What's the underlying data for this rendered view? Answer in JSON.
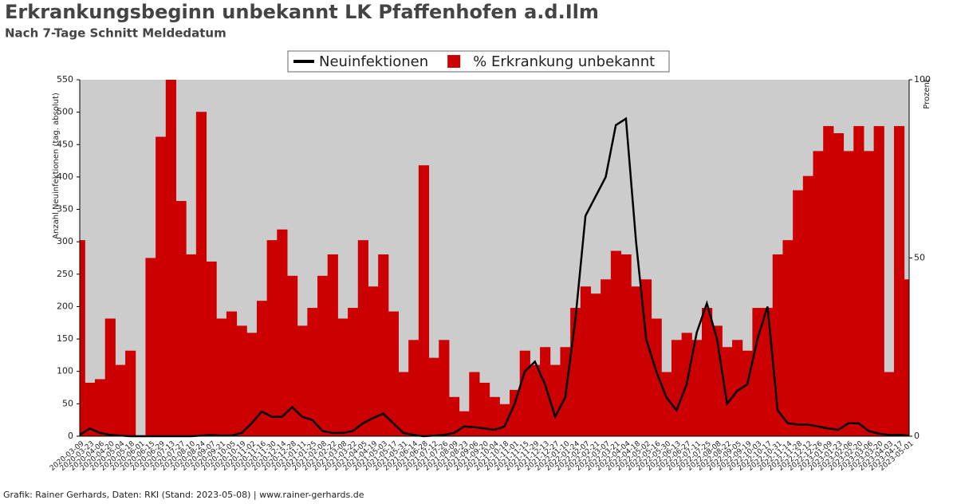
{
  "chart_data": {
    "type": "line-area",
    "title": "Erkrankungsbeginn unbekannt LK Pfaffenhofen a.d.Ilm",
    "subtitle": "Nach 7-Tage Schnitt Meldedatum",
    "ylabel": "Anzahl Neuinfektionen (tag. absolut)",
    "y2label": "Prozent",
    "footer": "Grafik: Rainer Gerhards, Daten: RKI (Stand: 2023-05-08) | www.rainer-gerhards.de",
    "categories": [
      "2020-03-09",
      "2020-03-23",
      "2020-04-06",
      "2020-04-20",
      "2020-05-04",
      "2020-05-18",
      "2020-06-01",
      "2020-06-15",
      "2020-06-29",
      "2020-07-13",
      "2020-07-27",
      "2020-08-10",
      "2020-08-24",
      "2020-09-07",
      "2020-09-21",
      "2020-10-05",
      "2020-10-19",
      "2020-11-02",
      "2020-11-16",
      "2020-11-30",
      "2020-12-14",
      "2020-12-28",
      "2021-01-11",
      "2021-01-25",
      "2021-02-08",
      "2021-02-22",
      "2021-03-08",
      "2021-03-22",
      "2021-04-05",
      "2021-04-19",
      "2021-05-03",
      "2021-05-17",
      "2021-05-31",
      "2021-06-14",
      "2021-06-28",
      "2021-07-12",
      "2021-07-26",
      "2021-08-09",
      "2021-08-23",
      "2021-09-06",
      "2021-09-20",
      "2021-10-04",
      "2021-10-18",
      "2021-11-01",
      "2021-11-15",
      "2021-11-29",
      "2021-12-13",
      "2021-12-27",
      "2022-01-10",
      "2022-01-24",
      "2022-02-07",
      "2022-02-21",
      "2022-03-07",
      "2022-03-21",
      "2022-04-04",
      "2022-04-18",
      "2022-05-02",
      "2022-05-16",
      "2022-05-30",
      "2022-06-13",
      "2022-06-27",
      "2022-07-11",
      "2022-07-25",
      "2022-08-08",
      "2022-08-22",
      "2022-09-05",
      "2022-09-19",
      "2022-10-03",
      "2022-10-17",
      "2022-10-31",
      "2022-11-14",
      "2022-11-28",
      "2022-12-12",
      "2022-12-26",
      "2023-01-09",
      "2023-01-23",
      "2023-02-06",
      "2023-02-20",
      "2023-03-06",
      "2023-03-20",
      "2023-04-03",
      "2023-04-17",
      "2023-05-01"
    ],
    "series": [
      {
        "name": "Neuinfektionen",
        "color": "#000000",
        "values": [
          2,
          12,
          5,
          2,
          1,
          0,
          0,
          0,
          0,
          0,
          0,
          0,
          1,
          2,
          1,
          1,
          5,
          20,
          38,
          30,
          30,
          45,
          30,
          25,
          8,
          5,
          5,
          8,
          20,
          28,
          35,
          20,
          5,
          2,
          0,
          1,
          2,
          5,
          15,
          14,
          12,
          10,
          15,
          50,
          100,
          115,
          80,
          30,
          60,
          180,
          340,
          370,
          400,
          480,
          490,
          300,
          150,
          100,
          60,
          40,
          80,
          160,
          205,
          150,
          50,
          70,
          80,
          150,
          200,
          40,
          20,
          18,
          18,
          15,
          12,
          10,
          20,
          20,
          8,
          4,
          2,
          2,
          1
        ]
      },
      {
        "name": "% Erkrankung unbekannt",
        "color": "#cc0000",
        "axis": "y2",
        "values": [
          55,
          15,
          16,
          33,
          20,
          24,
          0,
          50,
          84,
          100,
          66,
          51,
          91,
          49,
          33,
          35,
          31,
          29,
          38,
          55,
          58,
          45,
          31,
          36,
          45,
          51,
          33,
          36,
          55,
          42,
          51,
          35,
          18,
          27,
          76,
          22,
          27,
          11,
          7,
          18,
          15,
          11,
          9,
          13,
          24,
          20,
          25,
          20,
          25,
          36,
          42,
          40,
          44,
          52,
          51,
          42,
          44,
          33,
          18,
          27,
          29,
          27,
          36,
          31,
          25,
          27,
          24,
          36,
          36,
          51,
          55,
          69,
          73,
          80,
          87,
          85,
          80,
          87,
          80,
          87,
          18,
          87,
          44
        ]
      }
    ],
    "ylim": [
      0,
      550
    ],
    "yticks": [
      0,
      50,
      100,
      150,
      200,
      250,
      300,
      350,
      400,
      450,
      500,
      550
    ],
    "y2lim": [
      0,
      100
    ],
    "y2ticks": [
      0,
      50,
      100
    ],
    "background": "#cccccc"
  }
}
